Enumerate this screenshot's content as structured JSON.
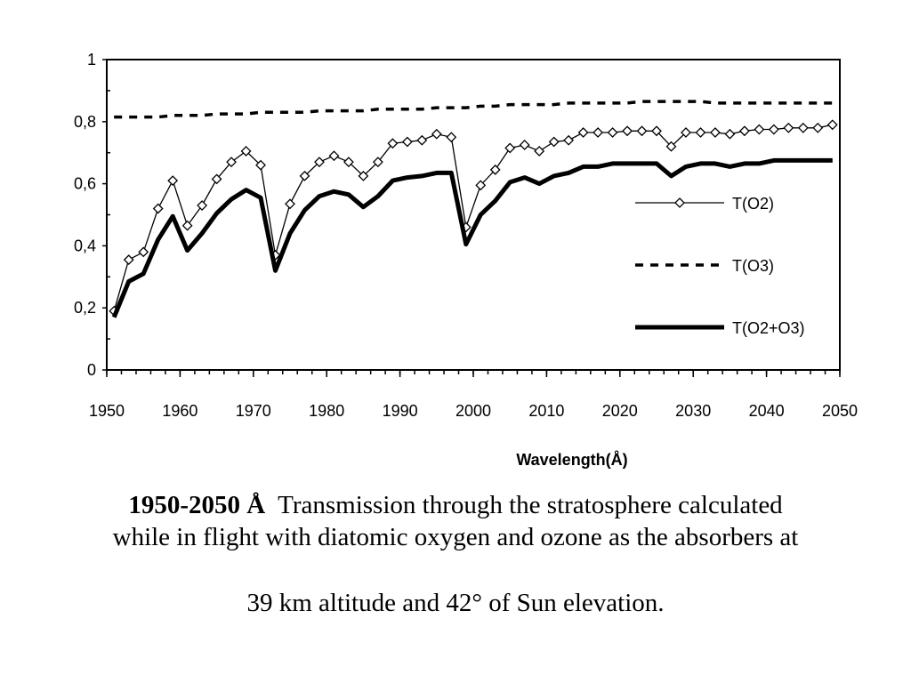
{
  "chart_data": {
    "type": "line",
    "title": "",
    "xlabel": "Wavelength(Å)",
    "ylabel": "",
    "xlim": [
      1950,
      2050
    ],
    "ylim": [
      0,
      1
    ],
    "xticks": [
      1950,
      1960,
      1970,
      1980,
      1990,
      2000,
      2010,
      2020,
      2030,
      2040,
      2050
    ],
    "xtick_labels": [
      "1950",
      "1960",
      "1970",
      "1980",
      "1990",
      "2000",
      "2010",
      "2020",
      "2030",
      "2040",
      "2050"
    ],
    "yticks": [
      0,
      0.2,
      0.4,
      0.6,
      0.8,
      1
    ],
    "ytick_labels": [
      "0",
      "0,2",
      "0,4",
      "0,6",
      "0,8",
      "1"
    ],
    "grid": false,
    "legend_position": "right",
    "x": [
      1951,
      1953,
      1955,
      1957,
      1959,
      1961,
      1963,
      1965,
      1967,
      1969,
      1971,
      1973,
      1975,
      1977,
      1979,
      1981,
      1983,
      1985,
      1987,
      1989,
      1991,
      1993,
      1995,
      1997,
      1999,
      2001,
      2003,
      2005,
      2007,
      2009,
      2011,
      2013,
      2015,
      2017,
      2019,
      2021,
      2023,
      2025,
      2027,
      2029,
      2031,
      2033,
      2035,
      2037,
      2039,
      2041,
      2043,
      2045,
      2047,
      2049
    ],
    "series": [
      {
        "name": "T(O2)",
        "style": "thin-diamond",
        "color": "#000000",
        "values": [
          0.19,
          0.355,
          0.38,
          0.52,
          0.61,
          0.465,
          0.53,
          0.615,
          0.67,
          0.705,
          0.66,
          0.37,
          0.535,
          0.625,
          0.67,
          0.69,
          0.67,
          0.625,
          0.67,
          0.73,
          0.735,
          0.74,
          0.76,
          0.75,
          0.46,
          0.595,
          0.645,
          0.715,
          0.725,
          0.705,
          0.735,
          0.74,
          0.765,
          0.765,
          0.765,
          0.77,
          0.77,
          0.77,
          0.72,
          0.765,
          0.765,
          0.765,
          0.76,
          0.77,
          0.775,
          0.775,
          0.78,
          0.78,
          0.78,
          0.79
        ]
      },
      {
        "name": "T(O3)",
        "style": "dashed",
        "color": "#000000",
        "values": [
          0.815,
          0.815,
          0.815,
          0.815,
          0.82,
          0.82,
          0.82,
          0.825,
          0.825,
          0.825,
          0.83,
          0.83,
          0.83,
          0.83,
          0.835,
          0.835,
          0.835,
          0.835,
          0.84,
          0.84,
          0.84,
          0.84,
          0.845,
          0.845,
          0.845,
          0.85,
          0.85,
          0.855,
          0.855,
          0.855,
          0.855,
          0.86,
          0.86,
          0.86,
          0.86,
          0.86,
          0.865,
          0.865,
          0.865,
          0.865,
          0.865,
          0.86,
          0.86,
          0.86,
          0.86,
          0.86,
          0.86,
          0.86,
          0.86,
          0.86
        ]
      },
      {
        "name": "T(O2+O3)",
        "style": "thick",
        "color": "#000000",
        "values": [
          0.17,
          0.285,
          0.31,
          0.42,
          0.495,
          0.385,
          0.44,
          0.505,
          0.55,
          0.58,
          0.555,
          0.32,
          0.44,
          0.515,
          0.56,
          0.575,
          0.565,
          0.525,
          0.56,
          0.61,
          0.62,
          0.625,
          0.635,
          0.635,
          0.405,
          0.5,
          0.545,
          0.605,
          0.62,
          0.6,
          0.625,
          0.635,
          0.655,
          0.655,
          0.665,
          0.665,
          0.665,
          0.665,
          0.625,
          0.655,
          0.665,
          0.665,
          0.655,
          0.665,
          0.665,
          0.675,
          0.675,
          0.675,
          0.675,
          0.675
        ]
      }
    ]
  },
  "caption": {
    "bold_part": "1950-2050 Å",
    "line1_rest": "  Transmission through the stratosphere calculated",
    "line2": "while in flight with diatomic oxygen and ozone as the absorbers at",
    "line3": "39 km altitude and 42° of Sun elevation."
  }
}
